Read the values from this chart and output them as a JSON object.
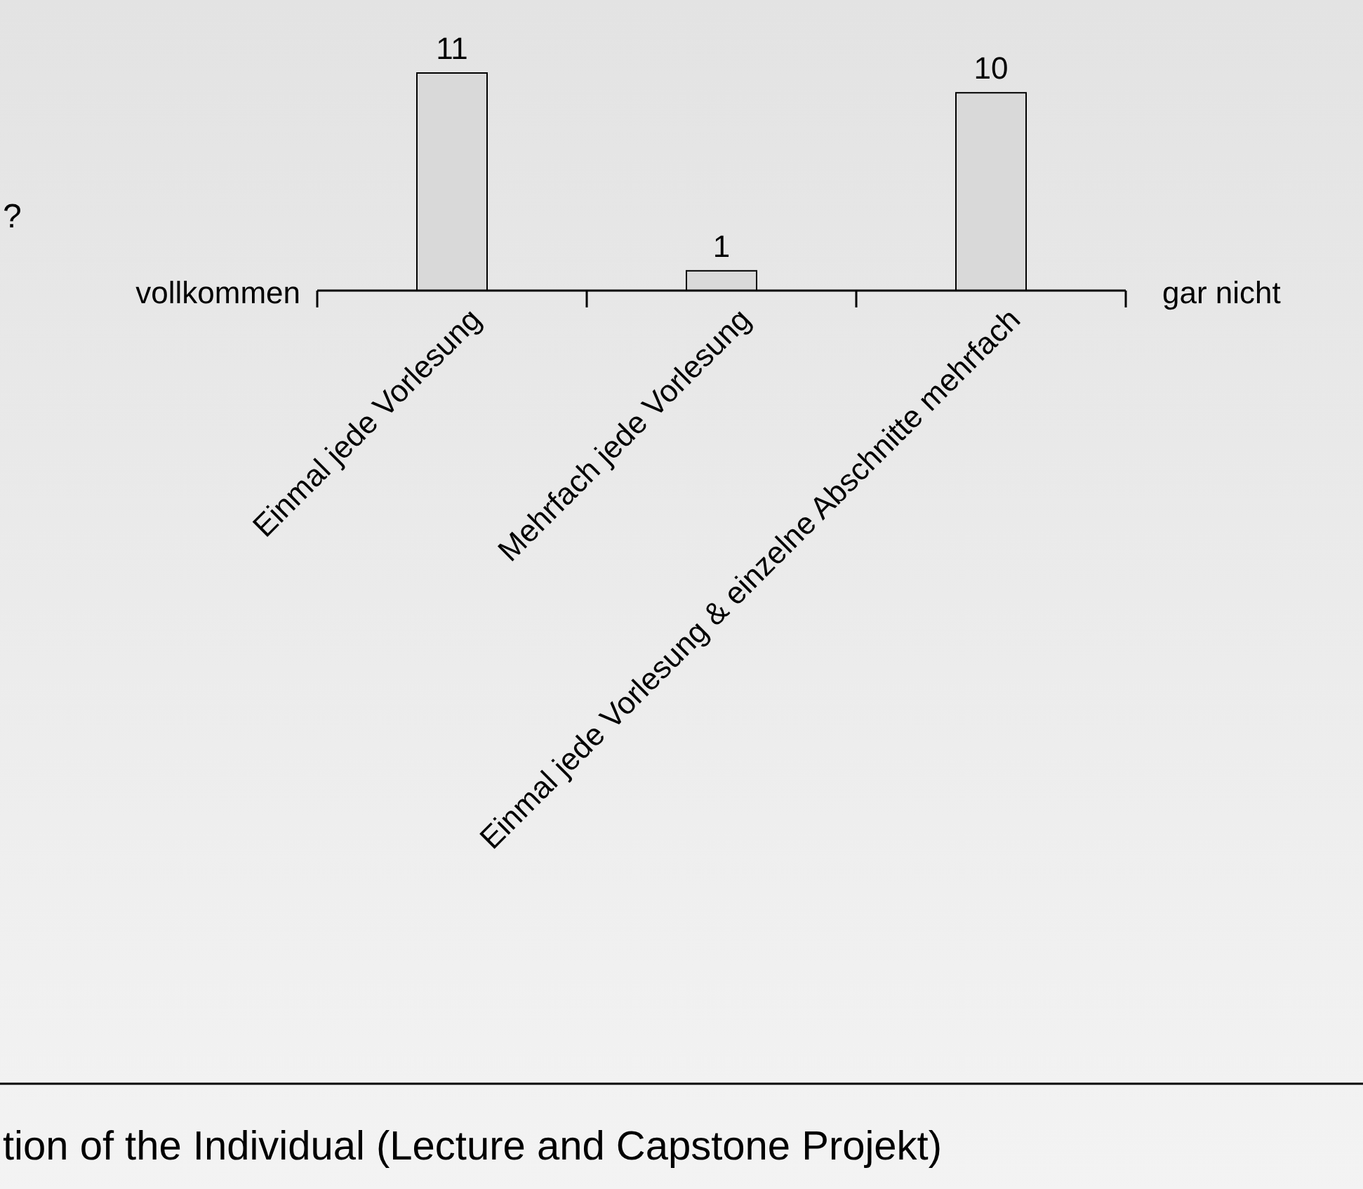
{
  "chart_data": {
    "type": "bar",
    "categories": [
      "Einmal jede Vorlesung",
      "Mehrfach jede Vorlesung",
      "Einmal jede Vorlesung & einzelne Abschnitte mehrfach"
    ],
    "values": [
      11,
      1,
      10
    ],
    "color": "#d9d9d9",
    "data_labels": true,
    "annotations": [
      "?",
      "vollkommen",
      "gar nicht",
      "tion of the Individual (Lecture and Capstone Projekt)"
    ]
  }
}
